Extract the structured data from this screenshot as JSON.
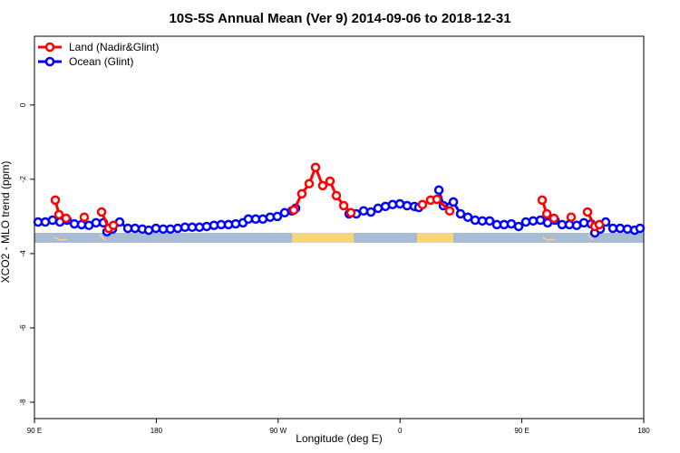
{
  "chart_data": {
    "type": "line",
    "title": "10S-5S Annual Mean (Ver 9)   2014-09-06 to 2018-12-31",
    "x_label": "Longitude (deg E)",
    "y_label": "XCO2 - MLO trend (ppm)",
    "xlim": [
      90,
      540
    ],
    "ylim": [
      -8.44,
      1.85
    ],
    "xticks": [
      {
        "value": 90,
        "label": "90 E"
      },
      {
        "value": 180,
        "label": "180"
      },
      {
        "value": 270,
        "label": "90 W"
      },
      {
        "value": 360,
        "label": "0"
      },
      {
        "value": 450,
        "label": "90 E"
      },
      {
        "value": 540,
        "label": "180"
      }
    ],
    "yticks": [
      -8,
      -6,
      -4,
      -2,
      0
    ],
    "legend": "top-left",
    "series": [
      {
        "name": "Land (Nadir&Glint)",
        "color": "#ff0000",
        "x": [
          105.4,
          108.1,
          113.4,
          126.8,
          139.6,
          144.9,
          148.3,
          281.5,
          287.5,
          292.9,
          297.6,
          302.9,
          308.3,
          313.0,
          318.4,
          323.7,
          376.6,
          382.6,
          387.3,
          396.7,
          465.0,
          468.4,
          473.7,
          486.4,
          498.5,
          503.9,
          507.2
        ],
        "values": [
          -2.56,
          -2.95,
          -3.05,
          -3.02,
          -2.88,
          -3.32,
          -3.24,
          -2.83,
          -2.39,
          -2.12,
          -1.68,
          -2.17,
          -2.05,
          -2.44,
          -2.71,
          -2.9,
          -2.68,
          -2.56,
          -2.54,
          -2.85,
          -2.56,
          -2.93,
          -3.05,
          -3.02,
          -2.88,
          -3.27,
          -3.22
        ]
      },
      {
        "name": "Ocean (Glint)",
        "color": "#0000ff",
        "x": [
          92.7,
          98.0,
          103.4,
          108.8,
          114.1,
          119.5,
          124.8,
          130.2,
          135.5,
          140.9,
          143.6,
          147.6,
          152.9,
          159.0,
          164.3,
          169.7,
          174.4,
          179.7,
          185.1,
          190.4,
          195.8,
          201.2,
          206.5,
          211.9,
          217.2,
          222.6,
          227.9,
          233.3,
          238.6,
          244.0,
          248.0,
          253.4,
          258.7,
          264.1,
          269.4,
          274.8,
          280.2,
          282.9,
          322.4,
          327.7,
          333.1,
          338.5,
          343.8,
          349.2,
          354.5,
          359.9,
          365.2,
          370.6,
          373.9,
          388.7,
          392.0,
          399.4,
          404.7,
          410.1,
          415.5,
          420.8,
          426.2,
          431.5,
          436.9,
          442.2,
          447.6,
          452.9,
          458.3,
          463.7,
          469.0,
          474.4,
          479.7,
          485.1,
          490.5,
          495.8,
          501.2,
          503.9,
          507.9,
          511.9,
          517.2,
          522.6,
          528.0,
          533.3,
          537.3
        ],
        "values": [
          -3.15,
          -3.15,
          -3.1,
          -3.15,
          -3.1,
          -3.2,
          -3.22,
          -3.24,
          -3.17,
          -3.17,
          -3.41,
          -3.34,
          -3.15,
          -3.32,
          -3.32,
          -3.34,
          -3.37,
          -3.32,
          -3.34,
          -3.34,
          -3.32,
          -3.29,
          -3.29,
          -3.29,
          -3.27,
          -3.24,
          -3.22,
          -3.22,
          -3.2,
          -3.17,
          -3.07,
          -3.07,
          -3.07,
          -3.02,
          -3.0,
          -2.9,
          -2.85,
          -2.78,
          -2.93,
          -2.93,
          -2.85,
          -2.88,
          -2.78,
          -2.73,
          -2.68,
          -2.66,
          -2.71,
          -2.73,
          -2.76,
          -2.29,
          -2.71,
          -2.61,
          -2.93,
          -3.02,
          -3.1,
          -3.12,
          -3.12,
          -3.22,
          -3.22,
          -3.2,
          -3.27,
          -3.15,
          -3.12,
          -3.1,
          -3.17,
          -3.1,
          -3.22,
          -3.22,
          -3.24,
          -3.17,
          -3.2,
          -3.44,
          -3.34,
          -3.15,
          -3.32,
          -3.32,
          -3.34,
          -3.37,
          -3.32
        ]
      }
    ]
  }
}
